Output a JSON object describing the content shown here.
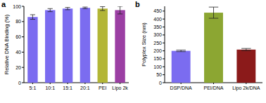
{
  "chart_data": [
    {
      "type": "bar",
      "panel_label": "a",
      "y_label": "Relative DNA Binding (%)",
      "categories": [
        "5:1",
        "10:1",
        "15:1",
        "20:1",
        "PEI",
        "Lipo 2k"
      ],
      "values": [
        86,
        95,
        97,
        98,
        97,
        95
      ],
      "errors": [
        3,
        2,
        1.5,
        1,
        2.5,
        5
      ],
      "colors": [
        "#7b6cf0",
        "#7b6cf0",
        "#7b6cf0",
        "#7b6cf0",
        "#b3b637",
        "#9b3fa3"
      ],
      "ylim": [
        0,
        100
      ],
      "yticks": [
        0,
        20,
        40,
        60,
        80,
        100
      ]
    },
    {
      "type": "bar",
      "panel_label": "b",
      "y_label": "Polyplex Size (nm)",
      "categories": [
        "DSP/DNA",
        "PEI/DNA",
        "Lipo 2k/DNA"
      ],
      "values": [
        200,
        440,
        208
      ],
      "errors": [
        5,
        35,
        7
      ],
      "colors": [
        "#7b6cf0",
        "#8ca632",
        "#8b1a1a"
      ],
      "ylim": [
        0,
        480
      ],
      "yticks": [
        0,
        50,
        100,
        150,
        200,
        250,
        300,
        350,
        400,
        450
      ]
    }
  ]
}
